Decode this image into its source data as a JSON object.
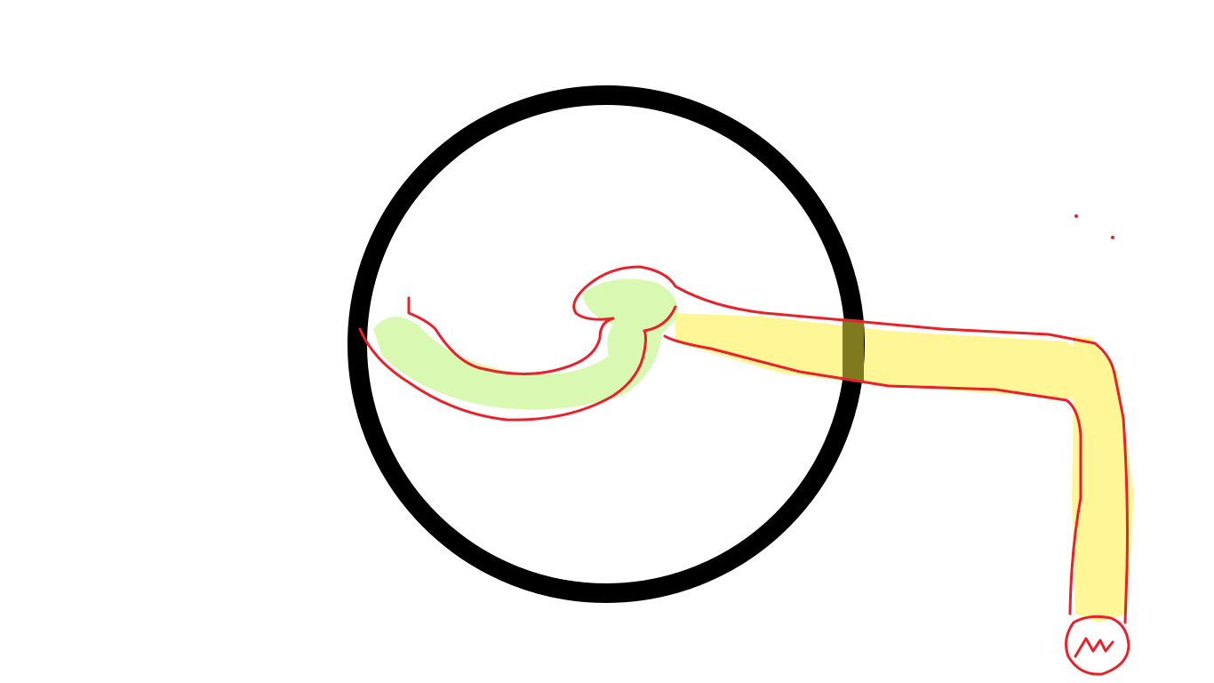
{
  "drawing": {
    "colors": {
      "background": "#ffffff",
      "circle": "#000000",
      "outline": "#e8212a",
      "yellow_fill": "#fff36b",
      "green_fill": "#c9f59a",
      "overlap": "#7f7a1e"
    },
    "strokes": [
      "black-circle",
      "yellow-arm-fill",
      "green-hand-fill",
      "red-outline",
      "red-fist",
      "red-dots"
    ]
  }
}
